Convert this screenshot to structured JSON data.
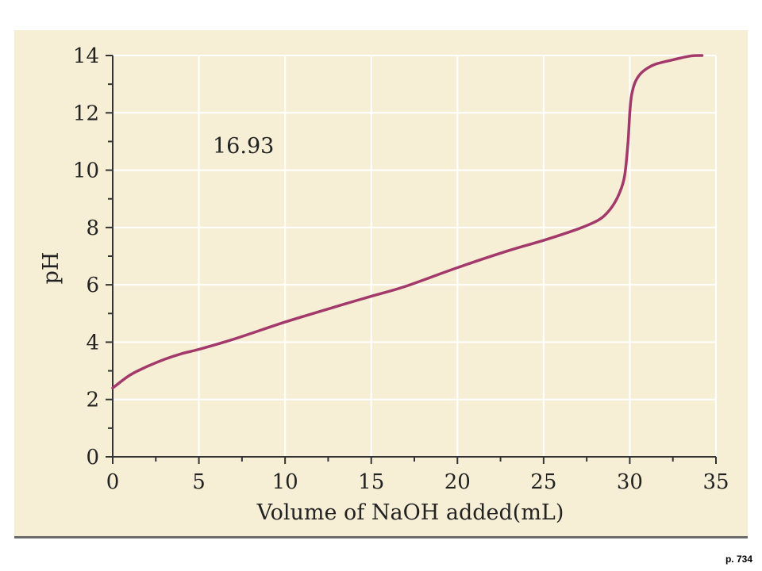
{
  "page": {
    "page_ref": "p. 734",
    "colors": {
      "panel": "#f6efd6",
      "curve": "#a3396a",
      "grid": "#ffffff",
      "axis": "#333333",
      "rule": "#6b6b6b"
    }
  },
  "chart_data": {
    "type": "line",
    "title": "",
    "xlabel": "Volume of NaOH added(mL)",
    "ylabel": "pH",
    "annotation": "16.93",
    "xlim": [
      0,
      35
    ],
    "ylim": [
      0,
      14
    ],
    "xticks": [
      0,
      5,
      10,
      15,
      20,
      25,
      30,
      35
    ],
    "yticks": [
      0,
      2,
      4,
      6,
      8,
      10,
      12,
      14
    ],
    "grid": true,
    "series": [
      {
        "x": [
          0,
          1,
          2,
          3,
          4,
          5,
          7,
          10,
          13,
          15,
          17,
          20,
          23,
          25,
          27,
          28,
          28.5,
          29,
          29.4,
          29.7,
          29.9,
          30.0,
          30.1,
          30.3,
          30.6,
          31,
          31.5,
          32.5,
          33.5,
          34.2
        ],
        "y": [
          2.4,
          2.85,
          3.15,
          3.4,
          3.6,
          3.75,
          4.1,
          4.7,
          5.25,
          5.6,
          5.95,
          6.6,
          7.2,
          7.55,
          7.95,
          8.2,
          8.4,
          8.75,
          9.2,
          9.8,
          11.0,
          12.0,
          12.6,
          13.05,
          13.35,
          13.55,
          13.7,
          13.85,
          13.98,
          14.0
        ]
      }
    ]
  }
}
